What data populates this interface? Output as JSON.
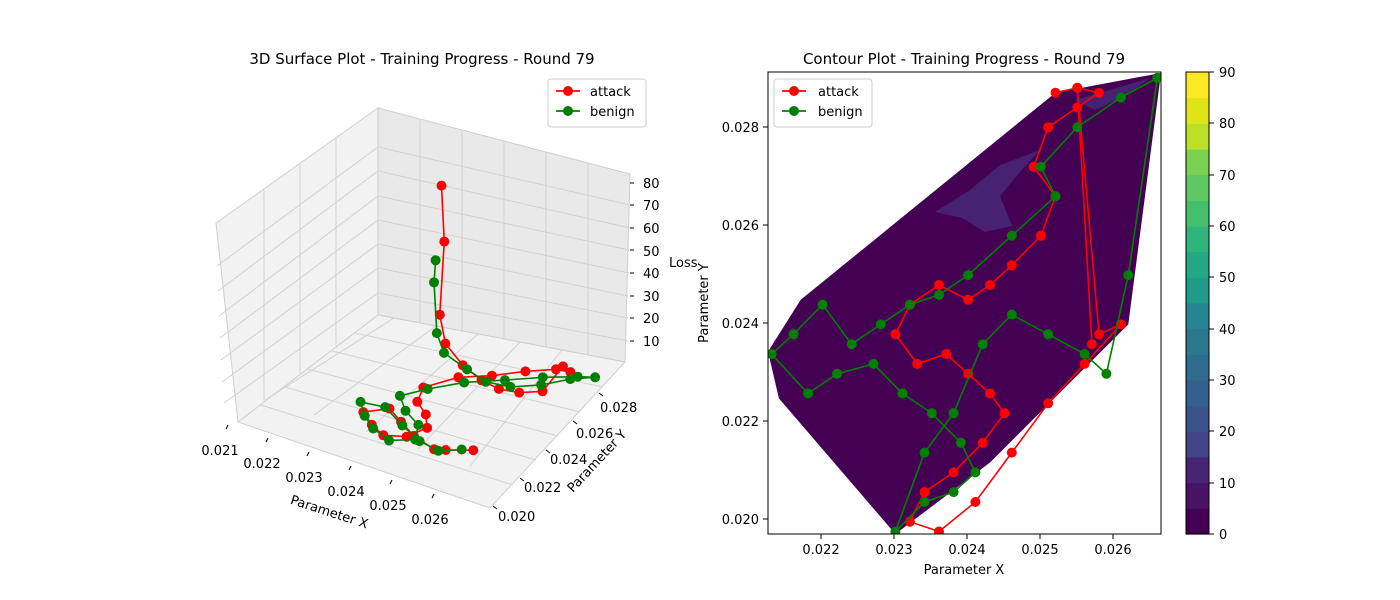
{
  "colors": {
    "attack": "#ff0000",
    "benign": "#008000",
    "contour_low": "#440154",
    "contour_mid": "#482878"
  },
  "chart_data": [
    {
      "type": "line3d",
      "title": "3D Surface Plot - Training Progress - Round 79",
      "xlabel": "Parameter X",
      "ylabel": "Parameter Y",
      "zlabel": "Loss",
      "xticks": [
        "0.021",
        "0.022",
        "0.023",
        "0.024",
        "0.025",
        "0.026"
      ],
      "yticks": [
        "0.020",
        "0.022",
        "0.024",
        "0.026",
        "0.028"
      ],
      "zticks": [
        "10",
        "20",
        "30",
        "40",
        "50",
        "60",
        "70",
        "80"
      ],
      "xlim": [
        0.021,
        0.0268
      ],
      "ylim": [
        0.0195,
        0.029
      ],
      "zlim": [
        0,
        90
      ],
      "legend": [
        "attack",
        "benign"
      ],
      "legend_position": "upper-right",
      "grid": true,
      "series": [
        {
          "name": "attack",
          "color": "#ff0000",
          "x": [
            0.0228,
            0.023,
            0.0231,
            0.0234,
            0.0239,
            0.0244,
            0.0248,
            0.0252,
            0.0256,
            0.0258,
            0.0257,
            0.0253,
            0.0248,
            0.0243,
            0.0238,
            0.0234,
            0.0236,
            0.024,
            0.0243,
            0.0241,
            0.0237,
            0.0233,
            0.0229,
            0.0233,
            0.0237,
            0.0242,
            0.0248,
            0.025,
            0.0255
          ],
          "y": [
            0.028,
            0.0276,
            0.027,
            0.0265,
            0.0262,
            0.026,
            0.026,
            0.0262,
            0.0266,
            0.0274,
            0.0282,
            0.0284,
            0.0278,
            0.027,
            0.0262,
            0.025,
            0.024,
            0.0234,
            0.0226,
            0.0218,
            0.0214,
            0.0218,
            0.0224,
            0.023,
            0.0226,
            0.022,
            0.0216,
            0.0218,
            0.0222
          ],
          "z": [
            62,
            44,
            20,
            13,
            9,
            7,
            6,
            6,
            7,
            14,
            8,
            6,
            5,
            4,
            4,
            3,
            3,
            3,
            3,
            2,
            2,
            2,
            2,
            3,
            2,
            2,
            2,
            2,
            3
          ]
        },
        {
          "name": "benign",
          "color": "#008000",
          "x": [
            0.0228,
            0.0229,
            0.0231,
            0.0234,
            0.024,
            0.0245,
            0.025,
            0.0255,
            0.0259,
            0.0262,
            0.0258,
            0.0252,
            0.0246,
            0.024,
            0.0235,
            0.0232,
            0.0236,
            0.0241,
            0.0243,
            0.0239,
            0.0234,
            0.023,
            0.0227,
            0.0232,
            0.0238,
            0.0244,
            0.0249,
            0.0253
          ],
          "y": [
            0.0276,
            0.0272,
            0.0268,
            0.0264,
            0.0262,
            0.026,
            0.0262,
            0.0268,
            0.0276,
            0.0284,
            0.0284,
            0.0278,
            0.027,
            0.026,
            0.025,
            0.024,
            0.0232,
            0.0226,
            0.0218,
            0.0212,
            0.0216,
            0.0222,
            0.0228,
            0.023,
            0.0224,
            0.0218,
            0.0216,
            0.022
          ],
          "z": [
            36,
            30,
            14,
            10,
            8,
            7,
            7,
            8,
            9,
            8,
            6,
            5,
            4,
            4,
            3,
            3,
            3,
            3,
            2,
            2,
            2,
            2,
            3,
            3,
            2,
            2,
            2,
            3
          ]
        }
      ]
    },
    {
      "type": "contour",
      "title": "Contour Plot - Training Progress - Round 79",
      "xlabel": "Parameter X",
      "ylabel": "Parameter Y",
      "xticks": [
        "0.022",
        "0.023",
        "0.024",
        "0.025",
        "0.026"
      ],
      "yticks": [
        "0.020",
        "0.022",
        "0.024",
        "0.026",
        "0.028"
      ],
      "xlim": [
        0.02125,
        0.02665
      ],
      "ylim": [
        0.01975,
        0.02912
      ],
      "colorbar": {
        "ticks": [
          "0",
          "10",
          "20",
          "30",
          "40",
          "50",
          "60",
          "70",
          "80",
          "90"
        ],
        "range": [
          0,
          90
        ],
        "colormap": "viridis"
      },
      "legend": [
        "attack",
        "benign"
      ],
      "legend_position": "upper-left",
      "hull": [
        [
          0.02125,
          0.02345
        ],
        [
          0.0217,
          0.0245
        ],
        [
          0.0252,
          0.0287
        ],
        [
          0.02665,
          0.0291
        ],
        [
          0.0262,
          0.024
        ],
        [
          0.0243,
          0.0212
        ],
        [
          0.023,
          0.01975
        ],
        [
          0.0214,
          0.0225
        ]
      ],
      "series": [
        {
          "name": "attack",
          "color": "#ff0000",
          "x": [
            0.0252,
            0.0255,
            0.0258,
            0.0255,
            0.0251,
            0.0249,
            0.0252,
            0.025,
            0.0246,
            0.0243,
            0.024,
            0.0236,
            0.0232,
            0.023,
            0.0233,
            0.0237,
            0.024,
            0.0243,
            0.0245,
            0.0242,
            0.0238,
            0.0234,
            0.0232,
            0.0236,
            0.0241,
            0.0246,
            0.0251,
            0.0256,
            0.0261,
            0.0258,
            0.0255,
            0.0257
          ],
          "y": [
            0.0287,
            0.0288,
            0.0287,
            0.0284,
            0.028,
            0.0272,
            0.0266,
            0.0258,
            0.0252,
            0.0248,
            0.0245,
            0.0248,
            0.0244,
            0.0238,
            0.0232,
            0.0234,
            0.023,
            0.0226,
            0.0222,
            0.0216,
            0.021,
            0.0206,
            0.02,
            0.0198,
            0.0204,
            0.0214,
            0.0224,
            0.0232,
            0.024,
            0.0238,
            0.0288,
            0.0236
          ],
          "z": [
            12,
            10,
            9,
            8,
            7,
            6,
            6,
            5,
            5,
            4,
            4,
            4,
            4,
            3,
            3,
            3,
            3,
            3,
            3,
            2,
            2,
            2,
            2,
            2,
            2,
            2,
            2,
            3,
            3,
            3,
            4,
            3
          ]
        },
        {
          "name": "benign",
          "color": "#008000",
          "x": [
            0.0266,
            0.0261,
            0.0255,
            0.025,
            0.0252,
            0.0246,
            0.024,
            0.0236,
            0.0232,
            0.0228,
            0.0224,
            0.022,
            0.0216,
            0.0213,
            0.0218,
            0.0222,
            0.0227,
            0.0231,
            0.0235,
            0.0239,
            0.0241,
            0.0238,
            0.0234,
            0.023,
            0.0234,
            0.0238,
            0.0242,
            0.0246,
            0.0251,
            0.0256,
            0.0259,
            0.0262,
            0.0266
          ],
          "y": [
            0.029,
            0.0286,
            0.028,
            0.0272,
            0.0266,
            0.0258,
            0.025,
            0.0246,
            0.0244,
            0.024,
            0.0236,
            0.0244,
            0.0238,
            0.0234,
            0.0226,
            0.023,
            0.0232,
            0.0226,
            0.0222,
            0.0216,
            0.021,
            0.0206,
            0.0204,
            0.0198,
            0.0214,
            0.0222,
            0.0236,
            0.0242,
            0.0238,
            0.0234,
            0.023,
            0.025,
            0.029
          ],
          "z": [
            9,
            8,
            7,
            6,
            6,
            5,
            5,
            4,
            4,
            4,
            3,
            3,
            3,
            3,
            3,
            3,
            3,
            3,
            3,
            2,
            2,
            2,
            2,
            2,
            2,
            3,
            3,
            3,
            3,
            3,
            3,
            4,
            5
          ]
        }
      ]
    }
  ]
}
